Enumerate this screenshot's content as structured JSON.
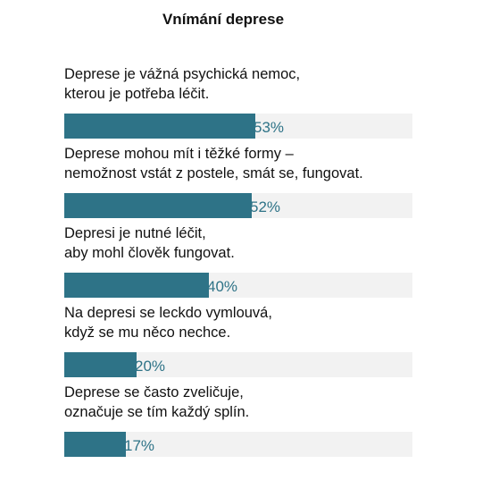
{
  "chart_data": {
    "type": "bar",
    "orientation": "horizontal",
    "title": "Vnímání deprese",
    "categories": [
      [
        "Deprese je vážná psychická nemoc,",
        "kterou je potřeba léčit."
      ],
      [
        "Deprese mohou mít i těžké formy –",
        "nemožnost vstát z postele, smát se, fungovat."
      ],
      [
        "Depresi je nutné léčit,",
        "aby mohl člověk fungovat."
      ],
      [
        "Na depresi se leckdo vymlouvá,",
        "když se mu něco nechce."
      ],
      [
        "Deprese se často zveličuje,",
        "označuje se tím každý splín."
      ]
    ],
    "values": [
      53,
      52,
      40,
      20,
      17
    ],
    "value_labels": [
      "53%",
      "52%",
      "40%",
      "20%",
      "17%"
    ],
    "unit": "%",
    "xlim": [
      0,
      100
    ],
    "grid": false,
    "colors": {
      "bar": "#2e7387",
      "track": "#f2f2f2",
      "value_text": "#2e7387"
    }
  }
}
